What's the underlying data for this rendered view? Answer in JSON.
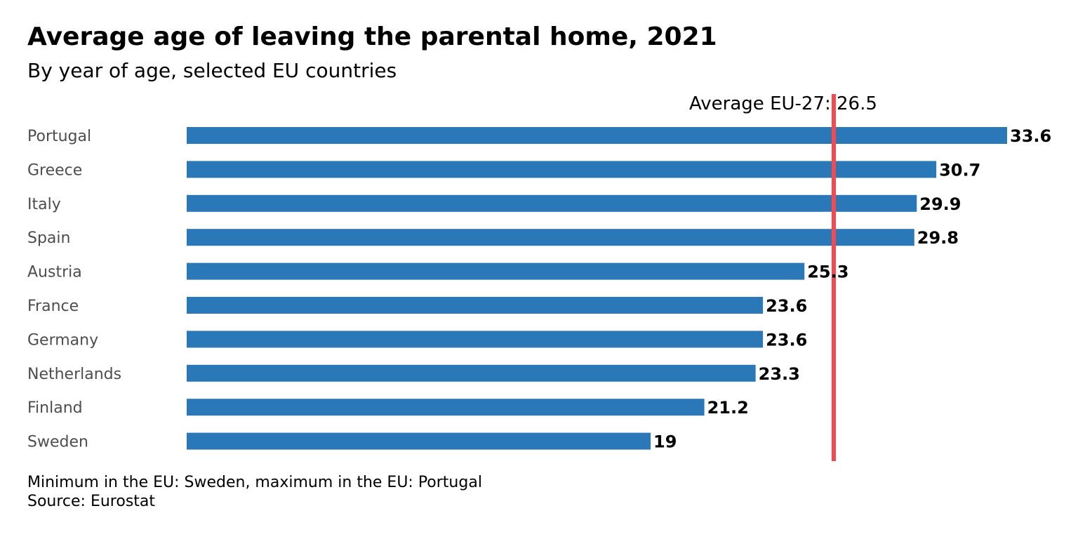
{
  "chart_data": {
    "type": "bar",
    "orientation": "horizontal",
    "title": "Average age of leaving the parental home, 2021",
    "subtitle": "By year of age, selected EU countries",
    "categories": [
      "Portugal",
      "Greece",
      "Italy",
      "Spain",
      "Austria",
      "France",
      "Germany",
      "Netherlands",
      "Finland",
      "Sweden"
    ],
    "values": [
      33.6,
      30.7,
      29.9,
      29.8,
      25.3,
      23.6,
      23.6,
      23.3,
      21.2,
      19
    ],
    "value_labels": [
      "33.6",
      "30.7",
      "29.9",
      "29.8",
      "25.3",
      "23.6",
      "23.6",
      "23.3",
      "21.2",
      "19"
    ],
    "xlabel": "",
    "ylabel": "",
    "xlim": [
      0,
      33.6
    ],
    "grid": false,
    "reference_line": {
      "label": "Average EU-27:  26.5",
      "value": 26.5,
      "color": "#f44a4f"
    },
    "bar_color": "#2a78b8",
    "notes": [
      "Minimum in the EU: Sweden, maximum in the EU: Portugal",
      "Source: Eurostat"
    ]
  }
}
